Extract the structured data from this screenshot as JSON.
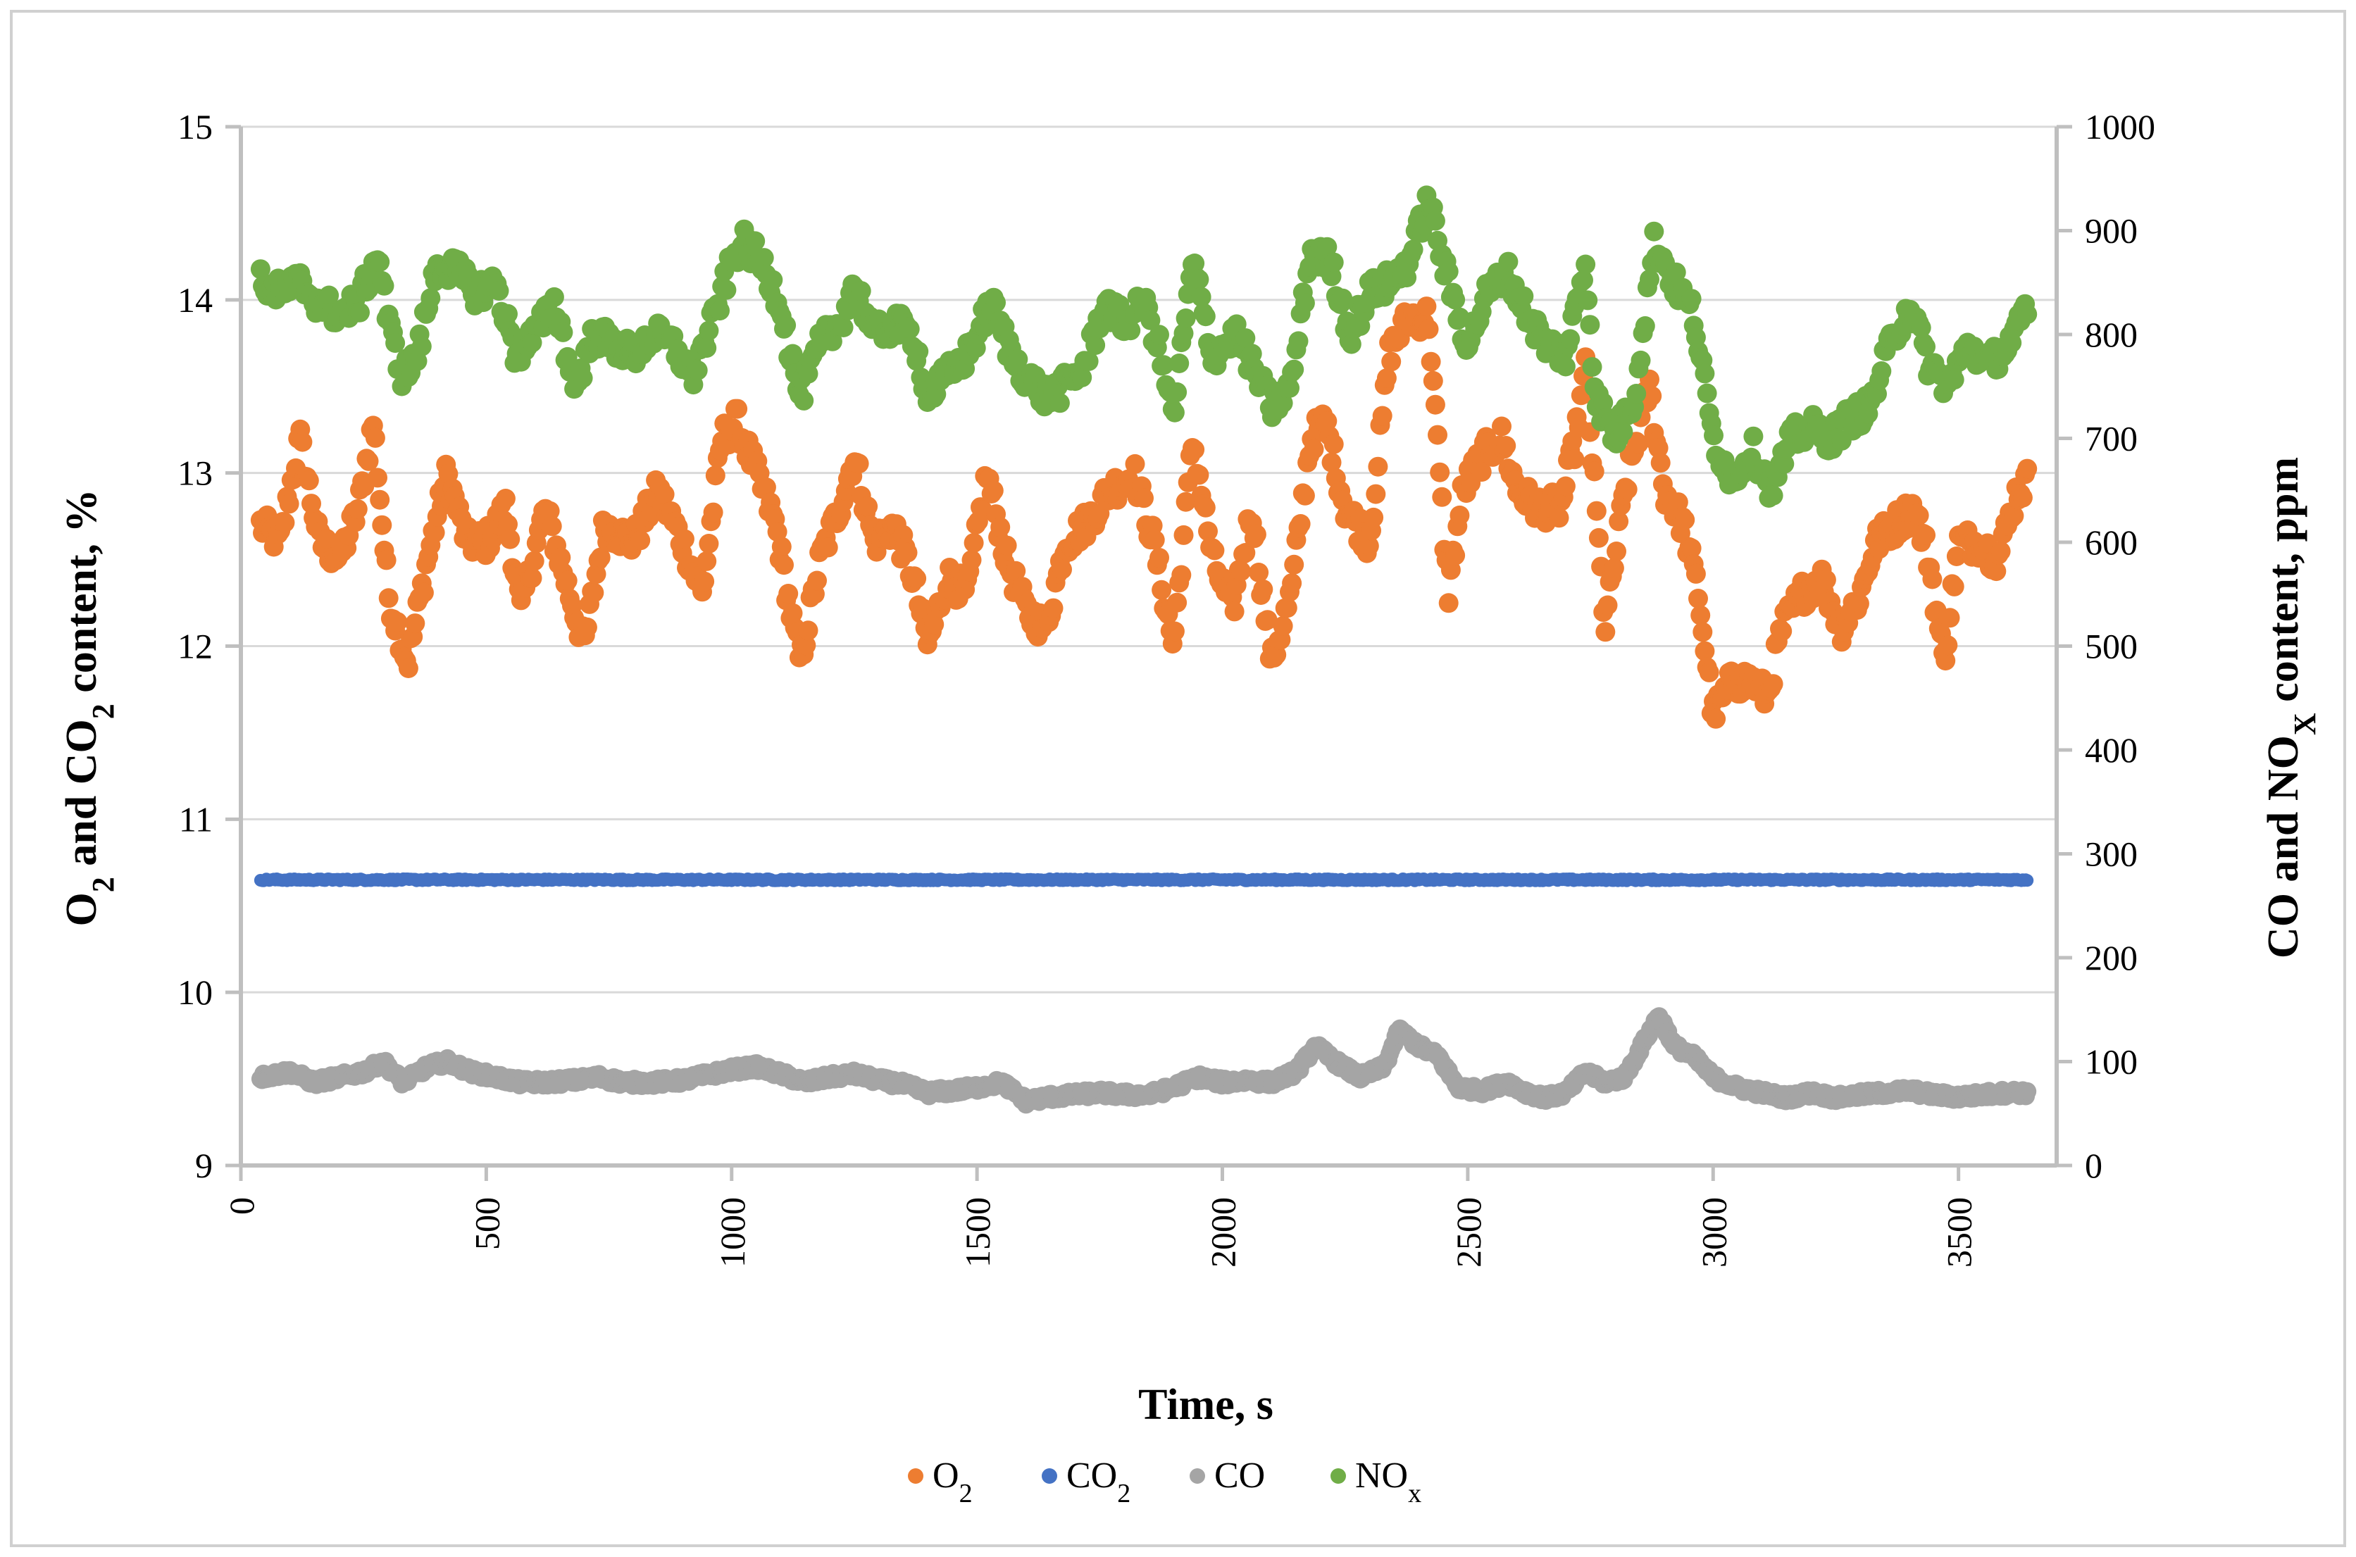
{
  "chart_data": {
    "type": "scatter",
    "x_axis": {
      "label": "Time, s",
      "range": [
        0,
        3700
      ],
      "ticks": [
        0,
        500,
        1000,
        1500,
        2000,
        2500,
        3000,
        3500
      ],
      "tick_labels": [
        "0",
        "500",
        "1000",
        "1500",
        "2000",
        "2500",
        "3000",
        "3500"
      ]
    },
    "y_left": {
      "label_parts": [
        {
          "text": "O",
          "sub": false
        },
        {
          "text": "2",
          "sub": true
        },
        {
          "text": " and CO",
          "sub": false
        },
        {
          "text": "2",
          "sub": true
        },
        {
          "text": " content, %",
          "sub": false
        }
      ],
      "range": [
        9,
        15
      ],
      "ticks": [
        9,
        10,
        11,
        12,
        13,
        14,
        15
      ],
      "tick_labels": [
        "9",
        "10",
        "11",
        "12",
        "13",
        "14",
        "15"
      ]
    },
    "y_right": {
      "label_parts": [
        {
          "text": "CO and NO",
          "sub": false
        },
        {
          "text": "X",
          "sub": true
        },
        {
          "text": " content, ppm",
          "sub": false
        }
      ],
      "range": [
        0,
        1000
      ],
      "ticks": [
        0,
        100,
        200,
        300,
        400,
        500,
        600,
        700,
        800,
        900,
        1000
      ],
      "tick_labels": [
        "0",
        "100",
        "200",
        "300",
        "400",
        "500",
        "600",
        "700",
        "800",
        "900",
        "1000"
      ]
    },
    "grid": "horizontal",
    "legend_position": "bottom",
    "series": [
      {
        "name": "O2",
        "legend_main": "O",
        "legend_sub": "2",
        "axis": "left",
        "color": "#ED7D31",
        "knots": [
          [
            40,
            12.7
          ],
          [
            80,
            12.6
          ],
          [
            120,
            13.2
          ],
          [
            160,
            12.6
          ],
          [
            200,
            12.5
          ],
          [
            240,
            12.8
          ],
          [
            270,
            13.3
          ],
          [
            300,
            12.3
          ],
          [
            340,
            11.9
          ],
          [
            380,
            12.5
          ],
          [
            420,
            13.0
          ],
          [
            460,
            12.6
          ],
          [
            500,
            12.6
          ],
          [
            540,
            12.8
          ],
          [
            570,
            12.2
          ],
          [
            620,
            12.8
          ],
          [
            660,
            12.4
          ],
          [
            700,
            12.0
          ],
          [
            740,
            12.7
          ],
          [
            800,
            12.6
          ],
          [
            850,
            12.9
          ],
          [
            900,
            12.6
          ],
          [
            940,
            12.3
          ],
          [
            980,
            13.2
          ],
          [
            1010,
            13.3
          ],
          [
            1050,
            13.0
          ],
          [
            1090,
            12.7
          ],
          [
            1120,
            12.2
          ],
          [
            1140,
            11.9
          ],
          [
            1180,
            12.5
          ],
          [
            1220,
            12.8
          ],
          [
            1250,
            13.1
          ],
          [
            1290,
            12.6
          ],
          [
            1330,
            12.7
          ],
          [
            1370,
            12.4
          ],
          [
            1400,
            12.0
          ],
          [
            1440,
            12.4
          ],
          [
            1480,
            12.3
          ],
          [
            1520,
            13.0
          ],
          [
            1560,
            12.5
          ],
          [
            1600,
            12.2
          ],
          [
            1640,
            12.1
          ],
          [
            1680,
            12.6
          ],
          [
            1720,
            12.7
          ],
          [
            1770,
            12.9
          ],
          [
            1820,
            13.0
          ],
          [
            1860,
            12.6
          ],
          [
            1900,
            12.0
          ],
          [
            1940,
            13.2
          ],
          [
            1980,
            12.5
          ],
          [
            2020,
            12.2
          ],
          [
            2060,
            12.8
          ],
          [
            2100,
            11.9
          ],
          [
            2140,
            12.3
          ],
          [
            2180,
            13.2
          ],
          [
            2210,
            13.3
          ],
          [
            2250,
            12.8
          ],
          [
            2300,
            12.6
          ],
          [
            2340,
            13.7
          ],
          [
            2380,
            13.9
          ],
          [
            2420,
            13.9
          ],
          [
            2460,
            12.3
          ],
          [
            2490,
            12.9
          ],
          [
            2530,
            13.1
          ],
          [
            2570,
            13.2
          ],
          [
            2600,
            12.9
          ],
          [
            2640,
            12.8
          ],
          [
            2690,
            12.8
          ],
          [
            2720,
            13.2
          ],
          [
            2740,
            13.6
          ],
          [
            2780,
            12.1
          ],
          [
            2820,
            12.9
          ],
          [
            2870,
            13.5
          ],
          [
            2900,
            12.9
          ],
          [
            2940,
            12.7
          ],
          [
            2970,
            12.3
          ],
          [
            3000,
            11.6
          ],
          [
            3040,
            11.8
          ],
          [
            3080,
            11.8
          ],
          [
            3110,
            11.7
          ],
          [
            3140,
            12.1
          ],
          [
            3180,
            12.3
          ],
          [
            3220,
            12.4
          ],
          [
            3260,
            12.1
          ],
          [
            3300,
            12.3
          ],
          [
            3330,
            12.6
          ],
          [
            3370,
            12.7
          ],
          [
            3410,
            12.8
          ],
          [
            3440,
            12.5
          ],
          [
            3470,
            11.9
          ],
          [
            3500,
            12.6
          ],
          [
            3540,
            12.6
          ],
          [
            3580,
            12.5
          ],
          [
            3620,
            12.9
          ],
          [
            3640,
            12.95
          ]
        ]
      },
      {
        "name": "CO2",
        "legend_main": "CO",
        "legend_sub": "2",
        "axis": "left",
        "color": "#4472C4",
        "knots": [
          [
            40,
            10.65
          ],
          [
            3640,
            10.65
          ]
        ]
      },
      {
        "name": "CO",
        "legend_main": "CO",
        "legend_sub": "",
        "axis": "right",
        "color": "#A5A5A5",
        "knots": [
          [
            40,
            85
          ],
          [
            100,
            90
          ],
          [
            150,
            80
          ],
          [
            200,
            85
          ],
          [
            250,
            90
          ],
          [
            290,
            100
          ],
          [
            330,
            80
          ],
          [
            380,
            95
          ],
          [
            420,
            100
          ],
          [
            470,
            90
          ],
          [
            520,
            85
          ],
          [
            570,
            80
          ],
          [
            620,
            80
          ],
          [
            680,
            82
          ],
          [
            730,
            85
          ],
          [
            780,
            80
          ],
          [
            840,
            80
          ],
          [
            900,
            82
          ],
          [
            960,
            88
          ],
          [
            1000,
            92
          ],
          [
            1050,
            95
          ],
          [
            1100,
            88
          ],
          [
            1150,
            80
          ],
          [
            1200,
            85
          ],
          [
            1250,
            88
          ],
          [
            1300,
            82
          ],
          [
            1350,
            78
          ],
          [
            1400,
            70
          ],
          [
            1450,
            72
          ],
          [
            1500,
            75
          ],
          [
            1550,
            80
          ],
          [
            1600,
            62
          ],
          [
            1650,
            66
          ],
          [
            1700,
            68
          ],
          [
            1750,
            70
          ],
          [
            1800,
            68
          ],
          [
            1850,
            68
          ],
          [
            1900,
            75
          ],
          [
            1950,
            85
          ],
          [
            2000,
            80
          ],
          [
            2050,
            82
          ],
          [
            2100,
            80
          ],
          [
            2150,
            90
          ],
          [
            2190,
            115
          ],
          [
            2230,
            100
          ],
          [
            2280,
            85
          ],
          [
            2330,
            95
          ],
          [
            2360,
            130
          ],
          [
            2400,
            115
          ],
          [
            2440,
            105
          ],
          [
            2480,
            75
          ],
          [
            2530,
            72
          ],
          [
            2580,
            80
          ],
          [
            2620,
            70
          ],
          [
            2660,
            65
          ],
          [
            2700,
            70
          ],
          [
            2740,
            90
          ],
          [
            2780,
            80
          ],
          [
            2820,
            85
          ],
          [
            2860,
            120
          ],
          [
            2890,
            145
          ],
          [
            2920,
            115
          ],
          [
            2960,
            105
          ],
          [
            3000,
            85
          ],
          [
            3050,
            75
          ],
          [
            3100,
            70
          ],
          [
            3150,
            65
          ],
          [
            3200,
            70
          ],
          [
            3250,
            65
          ],
          [
            3300,
            68
          ],
          [
            3350,
            70
          ],
          [
            3400,
            72
          ],
          [
            3450,
            68
          ],
          [
            3500,
            66
          ],
          [
            3550,
            68
          ],
          [
            3600,
            70
          ],
          [
            3640,
            70
          ]
        ]
      },
      {
        "name": "NOx",
        "legend_main": "NO",
        "legend_sub": "x",
        "axis": "right",
        "color": "#70AD47",
        "knots": [
          [
            40,
            850
          ],
          [
            80,
            840
          ],
          [
            120,
            850
          ],
          [
            160,
            830
          ],
          [
            200,
            820
          ],
          [
            240,
            830
          ],
          [
            280,
            880
          ],
          [
            300,
            810
          ],
          [
            330,
            760
          ],
          [
            360,
            780
          ],
          [
            400,
            870
          ],
          [
            440,
            860
          ],
          [
            480,
            840
          ],
          [
            520,
            850
          ],
          [
            560,
            780
          ],
          [
            600,
            800
          ],
          [
            640,
            830
          ],
          [
            680,
            750
          ],
          [
            720,
            800
          ],
          [
            760,
            790
          ],
          [
            800,
            780
          ],
          [
            840,
            800
          ],
          [
            880,
            790
          ],
          [
            920,
            760
          ],
          [
            960,
            810
          ],
          [
            1000,
            870
          ],
          [
            1020,
            890
          ],
          [
            1060,
            870
          ],
          [
            1100,
            830
          ],
          [
            1120,
            780
          ],
          [
            1140,
            740
          ],
          [
            1180,
            790
          ],
          [
            1220,
            810
          ],
          [
            1250,
            850
          ],
          [
            1290,
            800
          ],
          [
            1330,
            810
          ],
          [
            1370,
            800
          ],
          [
            1400,
            740
          ],
          [
            1440,
            760
          ],
          [
            1480,
            780
          ],
          [
            1530,
            830
          ],
          [
            1570,
            780
          ],
          [
            1600,
            760
          ],
          [
            1640,
            740
          ],
          [
            1680,
            750
          ],
          [
            1720,
            770
          ],
          [
            1760,
            830
          ],
          [
            1800,
            810
          ],
          [
            1840,
            830
          ],
          [
            1870,
            790
          ],
          [
            1900,
            720
          ],
          [
            1940,
            870
          ],
          [
            1980,
            780
          ],
          [
            2030,
            800
          ],
          [
            2070,
            760
          ],
          [
            2100,
            730
          ],
          [
            2140,
            750
          ],
          [
            2180,
            880
          ],
          [
            2220,
            870
          ],
          [
            2260,
            800
          ],
          [
            2300,
            840
          ],
          [
            2340,
            850
          ],
          [
            2380,
            870
          ],
          [
            2420,
            930
          ],
          [
            2460,
            850
          ],
          [
            2500,
            790
          ],
          [
            2540,
            840
          ],
          [
            2580,
            860
          ],
          [
            2620,
            820
          ],
          [
            2660,
            790
          ],
          [
            2700,
            780
          ],
          [
            2740,
            870
          ],
          [
            2760,
            740
          ],
          [
            2800,
            700
          ],
          [
            2840,
            740
          ],
          [
            2880,
            890
          ],
          [
            2920,
            850
          ],
          [
            2960,
            820
          ],
          [
            3000,
            700
          ],
          [
            3040,
            660
          ],
          [
            3080,
            690
          ],
          [
            3120,
            650
          ],
          [
            3160,
            700
          ],
          [
            3200,
            710
          ],
          [
            3240,
            700
          ],
          [
            3280,
            720
          ],
          [
            3320,
            730
          ],
          [
            3360,
            790
          ],
          [
            3400,
            830
          ],
          [
            3440,
            770
          ],
          [
            3480,
            750
          ],
          [
            3520,
            790
          ],
          [
            3560,
            770
          ],
          [
            3600,
            790
          ],
          [
            3640,
            820
          ]
        ]
      }
    ]
  }
}
